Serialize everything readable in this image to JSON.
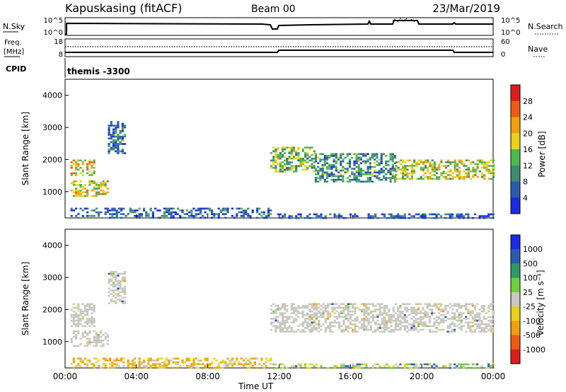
{
  "header": {
    "station": "Kapuskasing (fitACF)",
    "beam": "Beam 00",
    "date": "23/Mar/2019"
  },
  "panels": {
    "nsky": {
      "left_label": "N.Sky",
      "left_ticks": [
        "10^5",
        "10^0"
      ],
      "right_ticks": [
        "10^5",
        "10^0"
      ],
      "right_label": "N.Search"
    },
    "freq": {
      "left_label_1": "Freq.",
      "left_label_2": "[MHz]",
      "left_ticks": [
        "18",
        "8"
      ],
      "right_ticks": [
        "60",
        "0"
      ],
      "right_label": "Nave"
    },
    "cpid": {
      "label": "CPID",
      "value": "themis -3300"
    }
  },
  "colors": {
    "power": [
      "#1a2be6",
      "#2b5bb0",
      "#3d8c6e",
      "#4fb84a",
      "#e8d21a",
      "#f0a00e",
      "#ee5b14",
      "#e01b1b"
    ],
    "velocity": [
      "#e01b1b",
      "#ee5b14",
      "#f0a00e",
      "#e8d21a",
      "#c8c8c0",
      "#6fcf3f",
      "#2e9a66",
      "#2b5bb0",
      "#1a2be6"
    ],
    "ground_scatter": "#c8c8c0"
  },
  "chart_data": [
    {
      "type": "heatmap",
      "name": "power",
      "ylabel": "Slant Range [km]",
      "colorbar_label": "Power [dB]",
      "colorbar_ticks": [
        "28",
        "24",
        "20",
        "16",
        "12",
        "8",
        "4"
      ],
      "colorbar_range": [
        0,
        32
      ],
      "x_ticks": [
        "00:00",
        "04:00",
        "08:00",
        "12:00",
        "16:00",
        "20:00",
        "00:00"
      ],
      "x_range_hours": [
        0,
        24
      ],
      "y_ticks": [
        "1000",
        "2000",
        "3000",
        "4000"
      ],
      "y_range_km": [
        180,
        4500
      ],
      "features": [
        {
          "t": [
            0.3,
            2.4
          ],
          "r": [
            850,
            1350
          ],
          "value": 18
        },
        {
          "t": [
            0.3,
            1.6
          ],
          "r": [
            1500,
            2000
          ],
          "value": 20
        },
        {
          "t": [
            2.4,
            3.4
          ],
          "r": [
            2200,
            3200
          ],
          "value": 6
        },
        {
          "t": [
            11.5,
            14.0
          ],
          "r": [
            1600,
            2400
          ],
          "value": 14
        },
        {
          "t": [
            14.0,
            18.5
          ],
          "r": [
            1300,
            2200
          ],
          "value": 10
        },
        {
          "t": [
            18.5,
            24.0
          ],
          "r": [
            1400,
            2000
          ],
          "value": 16
        },
        {
          "t": [
            0.3,
            11.5
          ],
          "r": [
            200,
            500
          ],
          "value": 6
        },
        {
          "t": [
            11.5,
            24.0
          ],
          "r": [
            200,
            320
          ],
          "value": 5
        }
      ]
    },
    {
      "type": "heatmap",
      "name": "velocity",
      "ylabel": "Slant Range [km]",
      "xlabel": "Time UT",
      "colorbar_label": "Velocity [m s⁻¹]",
      "colorbar_ticks": [
        "1000",
        "500",
        "100",
        "25",
        "-25",
        "-100",
        "-500",
        "-1000"
      ],
      "x_ticks": [
        "00:00",
        "04:00",
        "08:00",
        "12:00",
        "16:00",
        "20:00",
        "00:00"
      ],
      "x_range_hours": [
        0,
        24
      ],
      "y_ticks": [
        "1000",
        "2000",
        "3000",
        "4000"
      ],
      "y_range_km": [
        180,
        4500
      ],
      "features": [
        {
          "t": [
            0.3,
            2.4
          ],
          "r": [
            850,
            1350
          ],
          "value": 0
        },
        {
          "t": [
            0.3,
            1.6
          ],
          "r": [
            1500,
            2200
          ],
          "value": 0
        },
        {
          "t": [
            2.4,
            3.4
          ],
          "r": [
            2200,
            3200
          ],
          "value": 0
        },
        {
          "t": [
            11.5,
            24.0
          ],
          "r": [
            1300,
            2200
          ],
          "value": 0
        },
        {
          "t": [
            0.3,
            11.5
          ],
          "r": [
            200,
            500
          ],
          "value": -100
        },
        {
          "t": [
            11.5,
            24.0
          ],
          "r": [
            200,
            320
          ],
          "value": 25
        }
      ]
    }
  ]
}
